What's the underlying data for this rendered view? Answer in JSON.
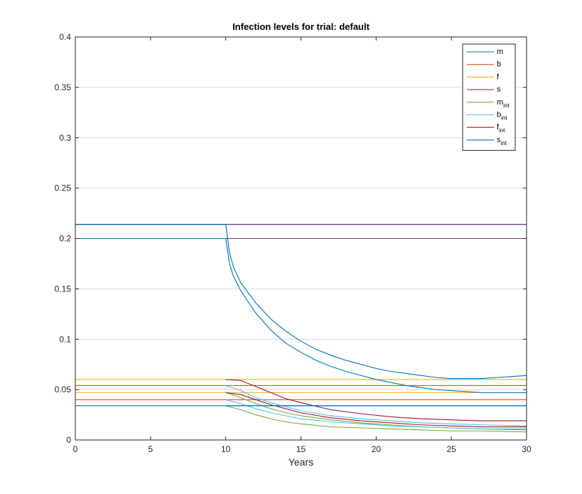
{
  "chart_data": {
    "type": "line",
    "title": "Infection levels for trial: default",
    "xlabel": "Years",
    "ylabel": "",
    "xlim": [
      0,
      30
    ],
    "ylim": [
      0,
      0.4
    ],
    "xticks": [
      0,
      5,
      10,
      15,
      20,
      25,
      30
    ],
    "yticks": [
      0,
      0.05,
      0.1,
      0.15,
      0.2,
      0.25,
      0.3,
      0.35,
      0.4
    ],
    "xtick_labels": [
      "0",
      "5",
      "10",
      "15",
      "20",
      "25",
      "30"
    ],
    "ytick_labels": [
      "0",
      "0.05",
      "0.1",
      "0.15",
      "0.2",
      "0.25",
      "0.3",
      "0.35",
      "0.4"
    ],
    "grid": true,
    "legend_position": "top-right",
    "legend": [
      {
        "base": "m",
        "sub": ""
      },
      {
        "base": "b",
        "sub": ""
      },
      {
        "base": "f",
        "sub": ""
      },
      {
        "base": "s",
        "sub": ""
      },
      {
        "base": "m",
        "sub": "int"
      },
      {
        "base": "b",
        "sub": "int"
      },
      {
        "base": "f",
        "sub": "int"
      },
      {
        "base": "s",
        "sub": "int"
      }
    ],
    "series": [
      {
        "color": "#0072BD",
        "points": [
          [
            0,
            0.2
          ],
          [
            30,
            0.2
          ]
        ]
      },
      {
        "color": "#0072BD",
        "points": [
          [
            0,
            0.214
          ],
          [
            30,
            0.214
          ]
        ]
      },
      {
        "color": "#D95319",
        "points": [
          [
            0,
            0.054
          ],
          [
            30,
            0.054
          ]
        ]
      },
      {
        "color": "#D95319",
        "points": [
          [
            0,
            0.04
          ],
          [
            30,
            0.04
          ]
        ]
      },
      {
        "color": "#EDB120",
        "points": [
          [
            0,
            0.06
          ],
          [
            30,
            0.06
          ]
        ]
      },
      {
        "color": "#EDB120",
        "points": [
          [
            0,
            0.047
          ],
          [
            30,
            0.047
          ]
        ]
      },
      {
        "color": "#7E2F8E",
        "points": [
          [
            0,
            0.2
          ],
          [
            30,
            0.2
          ]
        ]
      },
      {
        "color": "#7E2F8E",
        "points": [
          [
            0,
            0.214
          ],
          [
            30,
            0.214
          ]
        ]
      },
      {
        "color": "#0072BD",
        "points": [
          [
            0,
            0.2
          ],
          [
            10,
            0.2
          ],
          [
            10.25,
            0.175
          ],
          [
            10.5,
            0.163
          ],
          [
            11,
            0.148
          ],
          [
            12,
            0.126
          ],
          [
            13,
            0.109
          ],
          [
            14,
            0.096
          ],
          [
            15,
            0.087
          ],
          [
            16,
            0.079
          ],
          [
            17,
            0.073
          ],
          [
            18,
            0.068
          ],
          [
            19,
            0.064
          ],
          [
            20,
            0.06
          ],
          [
            21,
            0.057
          ],
          [
            22,
            0.054
          ],
          [
            23,
            0.052
          ],
          [
            24,
            0.05
          ],
          [
            25,
            0.049
          ],
          [
            26,
            0.048
          ],
          [
            27,
            0.047
          ],
          [
            28,
            0.047
          ],
          [
            29,
            0.047
          ],
          [
            30,
            0.047
          ]
        ]
      },
      {
        "color": "#0072BD",
        "points": [
          [
            0,
            0.214
          ],
          [
            10,
            0.214
          ],
          [
            10.25,
            0.186
          ],
          [
            10.5,
            0.172
          ],
          [
            11,
            0.156
          ],
          [
            12,
            0.136
          ],
          [
            13,
            0.12
          ],
          [
            14,
            0.108
          ],
          [
            15,
            0.098
          ],
          [
            16,
            0.09
          ],
          [
            17,
            0.084
          ],
          [
            18,
            0.079
          ],
          [
            19,
            0.075
          ],
          [
            20,
            0.071
          ],
          [
            21,
            0.068
          ],
          [
            22,
            0.066
          ],
          [
            23,
            0.064
          ],
          [
            24,
            0.062
          ],
          [
            25,
            0.061
          ],
          [
            26,
            0.061
          ],
          [
            27,
            0.061
          ],
          [
            28,
            0.062
          ],
          [
            29,
            0.063
          ],
          [
            30,
            0.064
          ]
        ]
      },
      {
        "color": "#0072BD",
        "points": [
          [
            0,
            0.034
          ],
          [
            30,
            0.034
          ]
        ]
      },
      {
        "color": "#77AC30",
        "points": [
          [
            10,
            0.034
          ],
          [
            11,
            0.03
          ],
          [
            12,
            0.025
          ],
          [
            13,
            0.021
          ],
          [
            14,
            0.018
          ],
          [
            15,
            0.016
          ],
          [
            17,
            0.013
          ],
          [
            19,
            0.012
          ],
          [
            21,
            0.011
          ],
          [
            23,
            0.01
          ],
          [
            25,
            0.009
          ],
          [
            27,
            0.009
          ],
          [
            30,
            0.008
          ]
        ]
      },
      {
        "color": "#77AC30",
        "points": [
          [
            10,
            0.047
          ],
          [
            11,
            0.042
          ],
          [
            12,
            0.036
          ],
          [
            13,
            0.031
          ],
          [
            14,
            0.027
          ],
          [
            15,
            0.024
          ],
          [
            17,
            0.02
          ],
          [
            19,
            0.017
          ],
          [
            21,
            0.015
          ],
          [
            23,
            0.013
          ],
          [
            25,
            0.012
          ],
          [
            27,
            0.011
          ],
          [
            30,
            0.01
          ]
        ]
      },
      {
        "color": "#4DBEEE",
        "points": [
          [
            10,
            0.04
          ],
          [
            11,
            0.036
          ],
          [
            12,
            0.031
          ],
          [
            13,
            0.027
          ],
          [
            14,
            0.024
          ],
          [
            15,
            0.021
          ],
          [
            17,
            0.018
          ],
          [
            19,
            0.016
          ],
          [
            21,
            0.014
          ],
          [
            23,
            0.013
          ],
          [
            25,
            0.012
          ],
          [
            27,
            0.011
          ],
          [
            30,
            0.011
          ]
        ]
      },
      {
        "color": "#4DBEEE",
        "points": [
          [
            10,
            0.054
          ],
          [
            11,
            0.049
          ],
          [
            12,
            0.042
          ],
          [
            13,
            0.037
          ],
          [
            14,
            0.033
          ],
          [
            15,
            0.029
          ],
          [
            17,
            0.024
          ],
          [
            19,
            0.021
          ],
          [
            21,
            0.019
          ],
          [
            23,
            0.017
          ],
          [
            25,
            0.016
          ],
          [
            27,
            0.015
          ],
          [
            30,
            0.014
          ]
        ]
      },
      {
        "color": "#A2142F",
        "points": [
          [
            10,
            0.047
          ],
          [
            11,
            0.045
          ],
          [
            12,
            0.04
          ],
          [
            13,
            0.035
          ],
          [
            14,
            0.031
          ],
          [
            15,
            0.027
          ],
          [
            17,
            0.022
          ],
          [
            19,
            0.019
          ],
          [
            21,
            0.017
          ],
          [
            23,
            0.015
          ],
          [
            25,
            0.014
          ],
          [
            27,
            0.013
          ],
          [
            30,
            0.013
          ]
        ]
      },
      {
        "color": "#A2142F",
        "points": [
          [
            10,
            0.06
          ],
          [
            11,
            0.059
          ],
          [
            12,
            0.053
          ],
          [
            13,
            0.047
          ],
          [
            14,
            0.041
          ],
          [
            15,
            0.037
          ],
          [
            17,
            0.03
          ],
          [
            19,
            0.026
          ],
          [
            21,
            0.023
          ],
          [
            23,
            0.021
          ],
          [
            25,
            0.02
          ],
          [
            27,
            0.019
          ],
          [
            30,
            0.019
          ]
        ]
      },
      {
        "color": "#0072BD",
        "points": [
          [
            10,
            0.034
          ],
          [
            30,
            0.034
          ]
        ]
      }
    ],
    "legend_colors": [
      "#0072BD",
      "#D95319",
      "#EDB120",
      "#7E2F8E",
      "#77AC30",
      "#4DBEEE",
      "#A2142F",
      "#0072BD"
    ]
  }
}
